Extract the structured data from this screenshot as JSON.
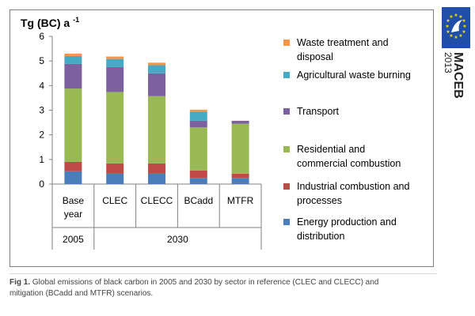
{
  "chart_data": {
    "type": "bar",
    "stacked": true,
    "title": "Tg (BC) a",
    "title_superscript": "-1",
    "ylim": [
      0,
      6
    ],
    "yticks": [
      0,
      1,
      2,
      3,
      4,
      5,
      6
    ],
    "grid": false,
    "legend_position": "right",
    "categories": [
      "Base year",
      "CLEC",
      "CLECC",
      "BCadd",
      "MTFR"
    ],
    "category_lines": [
      [
        "Base",
        "year"
      ],
      [
        "CLEC"
      ],
      [
        "CLECC"
      ],
      [
        "BCadd"
      ],
      [
        "MTFR"
      ]
    ],
    "groups": [
      {
        "label": "2005",
        "categories": [
          "Base year"
        ]
      },
      {
        "label": "2030",
        "categories": [
          "CLEC",
          "CLECC",
          "BCadd",
          "MTFR"
        ]
      }
    ],
    "series": [
      {
        "name": "Energy production and distribution",
        "legend_lines": [
          "Energy production and",
          "distribution"
        ],
        "color": "#4a7ebb",
        "values": [
          0.52,
          0.42,
          0.42,
          0.25,
          0.25
        ]
      },
      {
        "name": "Industrial combustion and processes",
        "legend_lines": [
          "Industrial combustion and",
          "processes"
        ],
        "color": "#be4b48",
        "values": [
          0.38,
          0.42,
          0.42,
          0.3,
          0.17
        ]
      },
      {
        "name": "Residential and commercial combustion",
        "legend_lines": [
          "Residential and",
          "commercial combustion"
        ],
        "color": "#98b954",
        "values": [
          2.98,
          2.9,
          2.73,
          1.75,
          2.03
        ]
      },
      {
        "name": "Transport",
        "legend_lines": [
          "Transport"
        ],
        "color": "#7d60a0",
        "values": [
          1.0,
          1.01,
          0.93,
          0.27,
          0.12
        ]
      },
      {
        "name": "Agricultural waste burning",
        "legend_lines": [
          "Agricultural waste burning"
        ],
        "color": "#46aac5",
        "values": [
          0.32,
          0.33,
          0.33,
          0.37,
          0.0
        ]
      },
      {
        "name": "Waste treatment and disposal",
        "legend_lines": [
          "Waste treatment and",
          "disposal"
        ],
        "color": "#f79646",
        "values": [
          0.1,
          0.1,
          0.1,
          0.08,
          0.0
        ]
      }
    ]
  },
  "logo": {
    "name": "MACEB",
    "year": "2013"
  },
  "caption": {
    "label": "Fig 1.",
    "line1": "Global emissions of black carbon in 2005 and 2030 by sector in reference (CLEC and CLECC) and",
    "line2": "mitigation (BCadd and MTFR) scenarios."
  }
}
